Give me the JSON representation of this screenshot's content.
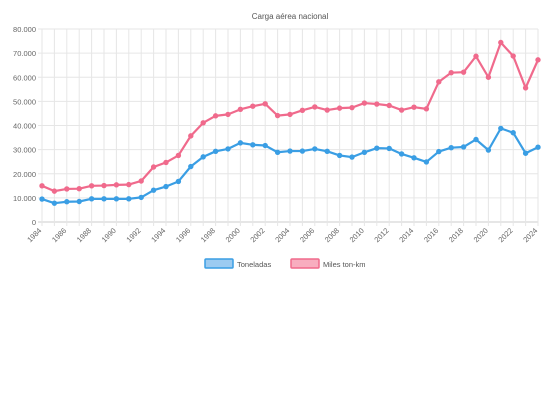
{
  "chart_data": {
    "type": "line",
    "title": "Carga aérea nacional",
    "xlabel": "",
    "ylabel": "",
    "x": [
      1984,
      1985,
      1986,
      1987,
      1988,
      1989,
      1990,
      1991,
      1992,
      1993,
      1994,
      1995,
      1996,
      1997,
      1998,
      1999,
      2000,
      2001,
      2002,
      2003,
      2004,
      2005,
      2006,
      2007,
      2008,
      2009,
      2010,
      2011,
      2012,
      2013,
      2014,
      2015,
      2016,
      2017,
      2018,
      2019,
      2020,
      2021,
      2022,
      2023,
      2024
    ],
    "x_tick_labels": [
      "1984",
      "1986",
      "1988",
      "1990",
      "1992",
      "1994",
      "1996",
      "1998",
      "2000",
      "2002",
      "2004",
      "2006",
      "2008",
      "2010",
      "2012",
      "2014",
      "2016",
      "2018",
      "2020",
      "2022",
      "2024"
    ],
    "ylim": [
      0,
      80000
    ],
    "y_tick_labels": [
      "0",
      "10.000",
      "20.000",
      "30.000",
      "40.000",
      "50.000",
      "60.000",
      "70.000",
      "80.000"
    ],
    "y_ticks": [
      0,
      10000,
      20000,
      30000,
      40000,
      50000,
      60000,
      70000,
      80000
    ],
    "grid": true,
    "legend_position": "bottom",
    "series": [
      {
        "name": "Toneladas",
        "color": "#3a9ee4",
        "fill": "#9ccbf1",
        "values": [
          9500,
          7800,
          8400,
          8500,
          9600,
          9600,
          9600,
          9600,
          10200,
          13200,
          14700,
          16800,
          23000,
          27000,
          29300,
          30300,
          32800,
          32000,
          31700,
          28900,
          29400,
          29400,
          30300,
          29300,
          27600,
          26900,
          28900,
          30600,
          30500,
          28200,
          26600,
          24900,
          29200,
          30800,
          31100,
          34200,
          29800,
          38800,
          37000,
          28500,
          31000
        ]
      },
      {
        "name": "Miles ton-km",
        "color": "#f06a8c",
        "fill": "#f8adbf",
        "values": [
          15000,
          12800,
          13700,
          13800,
          15000,
          15100,
          15400,
          15500,
          17000,
          22800,
          24700,
          27600,
          35700,
          41100,
          44000,
          44600,
          46700,
          48000,
          49000,
          44100,
          44600,
          46300,
          47700,
          46400,
          47200,
          47400,
          49300,
          48900,
          48300,
          46400,
          47600,
          46900,
          58100,
          61900,
          62100,
          68700,
          60000,
          74400,
          68800,
          55600,
          67200
        ]
      }
    ]
  }
}
